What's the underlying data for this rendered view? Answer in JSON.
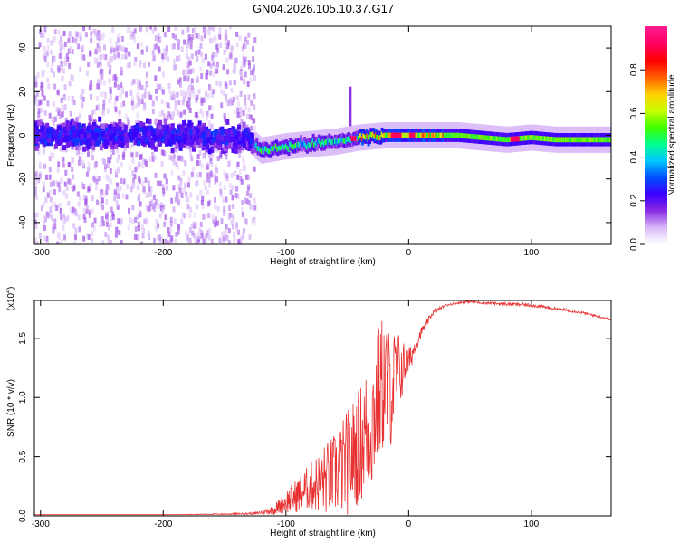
{
  "title": "GN04.2026.105.10.37.G17",
  "chart_data": [
    {
      "type": "heatmap",
      "name": "spectrogram",
      "xlabel": "Height of straight line (km)",
      "ylabel": "Frequency (Hz)",
      "xlim": [
        -305,
        165
      ],
      "ylim": [
        -50,
        50
      ],
      "xticks": [
        -300,
        -200,
        -100,
        0,
        100
      ],
      "yticks": [
        -40,
        -20,
        0,
        20,
        40
      ],
      "xtick_labels": [
        "-300",
        "-200",
        "-100",
        "0",
        "100"
      ],
      "ytick_labels": [
        "-40",
        "-20",
        "0",
        "20",
        "40"
      ],
      "colorbar": {
        "label": "Normalized spectral amplitude",
        "range": [
          0,
          1
        ],
        "ticks": [
          0.0,
          0.2,
          0.4,
          0.6,
          0.8
        ],
        "tick_labels": [
          "0.0",
          "0.2",
          "0.4",
          "0.6",
          "0.8"
        ],
        "colors": [
          "#ffffff",
          "#d8b8f8",
          "#8a2be2",
          "#3a00ff",
          "#0050ff",
          "#00c8ff",
          "#00ff90",
          "#40ff00",
          "#c8ff00",
          "#ffd000",
          "#ff6000",
          "#ff0000",
          "#ff0060",
          "#ff1a8c"
        ]
      },
      "ridge": {
        "x": [
          -305,
          -200,
          -130,
          -120,
          -100,
          -80,
          -60,
          -40,
          -20,
          0,
          20,
          40,
          60,
          80,
          100,
          120,
          140,
          165
        ],
        "y": [
          0,
          0,
          -2,
          -7,
          -5,
          -4,
          -3,
          -1,
          0,
          0,
          0,
          0,
          -1,
          -2,
          -1,
          -2,
          -2,
          -2
        ]
      }
    },
    {
      "type": "line",
      "name": "snr",
      "xlabel": "Height of straight line (km)",
      "ylabel": "SNR (10 * v/v)",
      "y_multiplier": "(x10",
      "y_multiplier_exp": "4",
      "y_multiplier_close": ")",
      "xlim": [
        -305,
        165
      ],
      "ylim": [
        0,
        1.82
      ],
      "xticks": [
        -300,
        -200,
        -100,
        0,
        100
      ],
      "yticks": [
        0.0,
        0.5,
        1.0,
        1.5
      ],
      "xtick_labels": [
        "-300",
        "-200",
        "-100",
        "0",
        "100"
      ],
      "ytick_labels": [
        "0.0",
        "0.5",
        "1.0",
        "1.5"
      ],
      "color": "#e83030",
      "x": [
        -305,
        -250,
        -200,
        -150,
        -125,
        -110,
        -100,
        -90,
        -80,
        -70,
        -60,
        -50,
        -40,
        -30,
        -25,
        -20,
        -15,
        -10,
        -5,
        0,
        10,
        20,
        30,
        40,
        50,
        60,
        80,
        100,
        120,
        140,
        165
      ],
      "y": [
        0.01,
        0.01,
        0.01,
        0.015,
        0.02,
        0.05,
        0.12,
        0.18,
        0.25,
        0.3,
        0.35,
        0.45,
        0.6,
        0.8,
        1.0,
        1.15,
        1.05,
        1.2,
        1.25,
        1.3,
        1.55,
        1.72,
        1.78,
        1.8,
        1.81,
        1.8,
        1.79,
        1.78,
        1.75,
        1.72,
        1.66
      ],
      "noise": [
        0,
        0,
        0,
        0.005,
        0.01,
        0.04,
        0.1,
        0.15,
        0.2,
        0.3,
        0.35,
        0.45,
        0.5,
        0.6,
        0.6,
        0.6,
        0.5,
        0.4,
        0.25,
        0.12,
        0.04,
        0.02,
        0.01,
        0.01,
        0.01,
        0.01,
        0.015,
        0.015,
        0.012,
        0.01,
        0.01
      ]
    }
  ]
}
